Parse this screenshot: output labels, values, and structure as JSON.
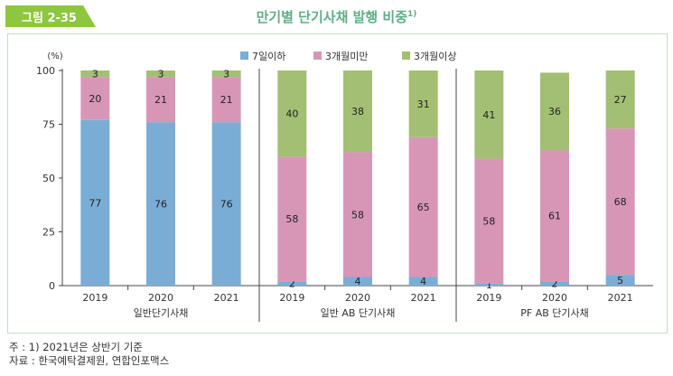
{
  "figure_label": "그림 2-35",
  "title": "만기별 단기사채 발행 비중",
  "title_sup": "1)",
  "footnote": "주 : 1) 2021년은 상반기 기준",
  "source": "자료 : 한국예탁결제원, 연합인포맥스",
  "colors": {
    "accent": "#8dc63f",
    "title": "#5fae84",
    "frame": "#c3dcc9"
  },
  "chart_data": {
    "type": "bar",
    "stacked": true,
    "y_unit": "(%)",
    "ylim": [
      0,
      100
    ],
    "yticks": [
      0,
      25,
      50,
      75,
      100
    ],
    "grid": false,
    "legend_position": "top",
    "groups": [
      {
        "label": "일반단기사채",
        "categories": [
          "2019",
          "2020",
          "2021"
        ]
      },
      {
        "label": "일반 AB 단기사채",
        "categories": [
          "2019",
          "2020",
          "2021"
        ]
      },
      {
        "label": "PF AB 단기사채",
        "categories": [
          "2019",
          "2020",
          "2021"
        ]
      }
    ],
    "series": [
      {
        "name": "7일이하",
        "color": "#7aadd6",
        "values": [
          77,
          76,
          76,
          2,
          4,
          4,
          1,
          2,
          5
        ]
      },
      {
        "name": "3개월미만",
        "color": "#d896b7",
        "values": [
          20,
          21,
          21,
          58,
          58,
          65,
          58,
          61,
          68
        ]
      },
      {
        "name": "3개월이상",
        "color": "#a3bf73",
        "values": [
          3,
          3,
          3,
          40,
          38,
          31,
          41,
          36,
          27
        ]
      }
    ]
  }
}
